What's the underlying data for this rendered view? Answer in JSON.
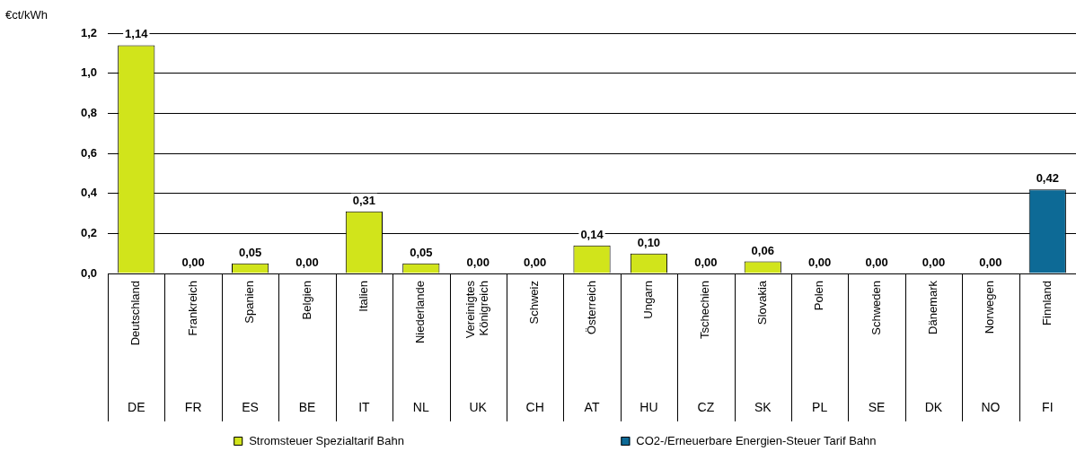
{
  "chart_data": {
    "type": "bar",
    "ylabel": "€ct/kWh",
    "categories": [
      "Deutschland",
      "Frankreich",
      "Spanien",
      "Belgien",
      "Italien",
      "Niederlande",
      "Vereinigtes Königreich",
      "Schweiz",
      "Österreich",
      "Ungarn",
      "Tschechien",
      "Slovakia",
      "Polen",
      "Schweden",
      "Dänemark",
      "Norwegen",
      "Finnland"
    ],
    "series": [
      {
        "name": "Stromsteuer Spezialtarif Bahn",
        "color": "#d1e41b",
        "values": [
          1.14,
          0,
          0.05,
          0,
          0.31,
          0.05,
          0,
          0,
          0.14,
          0.1,
          0,
          0.06,
          0,
          0,
          0,
          0,
          null
        ],
        "value_labels": [
          "1,14",
          "0,00",
          "0,05",
          "0,00",
          "0,31",
          "0,05",
          "0,00",
          "0,00",
          "0,14",
          "0,10",
          "0,00",
          "0,06",
          "0,00",
          "0,00",
          "0,00",
          "0,00",
          null
        ]
      },
      {
        "name": "CO2-/Erneuerbare Energien-Steuer Tarif Bahn",
        "color": "#0d6a96",
        "values": [
          null,
          null,
          null,
          null,
          null,
          null,
          null,
          null,
          null,
          null,
          null,
          null,
          null,
          null,
          null,
          null,
          0.42
        ],
        "value_labels": [
          null,
          null,
          null,
          null,
          null,
          null,
          null,
          null,
          null,
          null,
          null,
          null,
          null,
          null,
          null,
          null,
          "0,42"
        ]
      }
    ],
    "stacked": true,
    "ylim": [
      0,
      1.2
    ],
    "yticks": [
      {
        "value": 0,
        "label": "0,0"
      },
      {
        "value": 0.2,
        "label": "0,2"
      },
      {
        "value": 0.4,
        "label": "0,4"
      },
      {
        "value": 0.6,
        "label": "0,6"
      },
      {
        "value": 0.8,
        "label": "0,8"
      },
      {
        "value": 1.0,
        "label": "1,0"
      },
      {
        "value": 1.2,
        "label": "1,2"
      }
    ],
    "grid": "y",
    "legend": "bottom",
    "annotations": [
      "DE",
      "FR",
      "ES",
      "BE",
      "IT",
      "NL",
      "UK",
      "CH",
      "AT",
      "HU",
      "CZ",
      "SK",
      "PL",
      "SE",
      "DK",
      "NO",
      "FI"
    ]
  }
}
